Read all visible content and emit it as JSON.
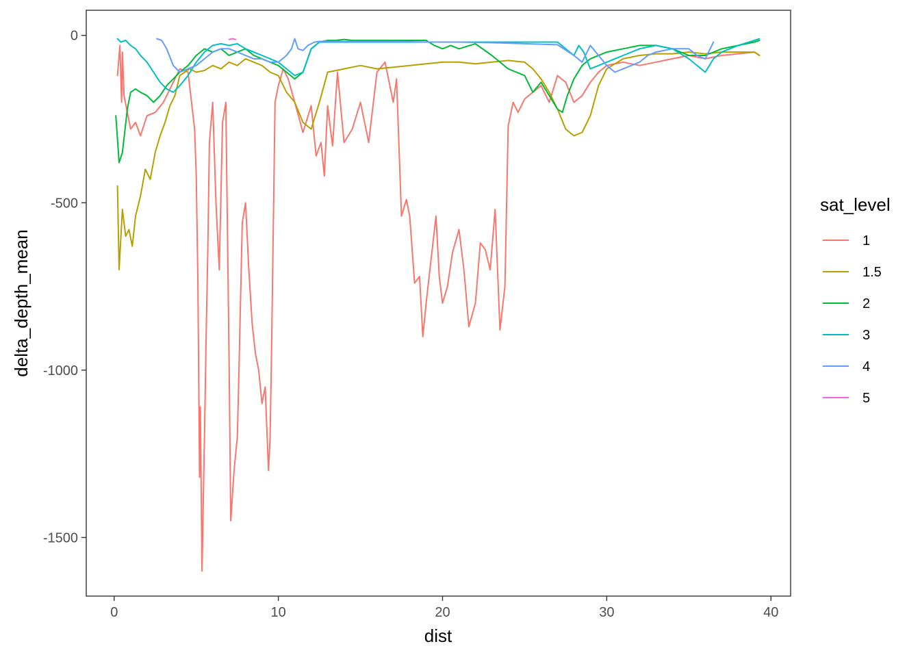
{
  "chart_data": {
    "type": "line",
    "title": "",
    "xlabel": "dist",
    "ylabel": "delta_depth_mean",
    "xlim": [
      -1.7,
      41.2
    ],
    "ylim": [
      -1675,
      75
    ],
    "x_ticks": [
      0,
      10,
      20,
      30,
      40
    ],
    "x_tick_labels": [
      "0",
      "10",
      "20",
      "30",
      "40"
    ],
    "y_ticks": [
      0,
      -500,
      -1000,
      -1500
    ],
    "y_tick_labels": [
      "0",
      "-500",
      "-1000",
      "-1500"
    ],
    "grid": false,
    "legend": {
      "title": "sat_level",
      "placement": "right"
    },
    "series": [
      {
        "name": "1",
        "color": "#F8766D",
        "x": [
          0.2,
          0.35,
          0.45,
          0.5,
          0.6,
          0.8,
          1.0,
          1.3,
          1.6,
          2.0,
          2.5,
          3.0,
          3.5,
          4.0,
          4.5,
          4.9,
          5.0,
          5.1,
          5.2,
          5.25,
          5.35,
          5.45,
          5.5,
          5.6,
          5.7,
          5.8,
          6.0,
          6.2,
          6.4,
          6.6,
          6.8,
          7.0,
          7.1,
          7.3,
          7.5,
          7.6,
          7.8,
          8.0,
          8.2,
          8.4,
          8.6,
          8.8,
          9.0,
          9.2,
          9.4,
          9.5,
          9.6,
          9.8,
          10.0,
          10.3,
          10.6,
          11.0,
          11.5,
          12.0,
          12.3,
          12.6,
          12.8,
          13.0,
          13.3,
          13.6,
          14.0,
          14.5,
          15.0,
          15.5,
          16.0,
          16.5,
          17.0,
          17.2,
          17.5,
          17.8,
          18.0,
          18.3,
          18.6,
          18.8,
          19.0,
          19.3,
          19.6,
          19.8,
          20.0,
          20.3,
          20.6,
          21.0,
          21.3,
          21.6,
          22.0,
          22.3,
          22.6,
          22.9,
          23.2,
          23.5,
          23.8,
          24.0,
          24.3,
          24.6,
          25.0,
          25.5,
          26.0,
          26.5,
          27.0,
          27.5,
          28.0,
          28.5,
          29.0,
          29.5,
          30.0,
          31.0,
          32.0,
          33.0,
          34.0,
          35.0,
          36.0,
          37.0,
          38.0,
          39.0,
          39.3
        ],
        "y": [
          -120,
          -30,
          -200,
          -50,
          -180,
          -230,
          -280,
          -260,
          -300,
          -240,
          -230,
          -200,
          -150,
          -100,
          -110,
          -280,
          -420,
          -740,
          -1320,
          -1110,
          -1600,
          -1330,
          -1200,
          -900,
          -650,
          -320,
          -200,
          -500,
          -700,
          -260,
          -200,
          -980,
          -1450,
          -1300,
          -1200,
          -1000,
          -560,
          -500,
          -700,
          -860,
          -950,
          -1000,
          -1100,
          -1050,
          -1300,
          -1200,
          -900,
          -200,
          -150,
          -100,
          -130,
          -200,
          -290,
          -210,
          -360,
          -320,
          -420,
          -210,
          -330,
          -110,
          -320,
          -280,
          -200,
          -320,
          -110,
          -80,
          -200,
          -130,
          -540,
          -490,
          -540,
          -740,
          -720,
          -900,
          -800,
          -670,
          -540,
          -720,
          -800,
          -750,
          -650,
          -580,
          -700,
          -870,
          -800,
          -620,
          -640,
          -700,
          -520,
          -880,
          -750,
          -270,
          -200,
          -230,
          -190,
          -170,
          -150,
          -200,
          -120,
          -140,
          -200,
          -180,
          -140,
          -110,
          -90,
          -80,
          -90,
          -80,
          -70,
          -60,
          -70,
          -60,
          -55,
          -50,
          -60
        ]
      },
      {
        "name": "1.5",
        "color": "#B79F00",
        "x": [
          0.2,
          0.3,
          0.5,
          0.7,
          0.9,
          1.1,
          1.3,
          1.6,
          1.9,
          2.2,
          2.5,
          2.8,
          3.1,
          3.4,
          3.7,
          4.0,
          4.3,
          4.6,
          5.0,
          5.5,
          6.0,
          6.5,
          7.0,
          7.5,
          8.0,
          8.5,
          9.0,
          9.5,
          10.0,
          10.5,
          11.0,
          11.5,
          12.0,
          12.5,
          13.0,
          14.0,
          15.0,
          16.0,
          17.0,
          18.0,
          19.0,
          20.0,
          21.0,
          22.0,
          23.0,
          24.0,
          25.0,
          25.5,
          26.0,
          26.5,
          27.0,
          27.5,
          28.0,
          28.5,
          29.0,
          29.5,
          30.0,
          31.0,
          32.0,
          33.0,
          34.0,
          35.0,
          36.0,
          37.0,
          38.0,
          39.0,
          39.3
        ],
        "y": [
          -450,
          -700,
          -520,
          -600,
          -580,
          -630,
          -540,
          -480,
          -400,
          -430,
          -350,
          -300,
          -260,
          -210,
          -180,
          -120,
          -110,
          -100,
          -110,
          -105,
          -90,
          -100,
          -80,
          -90,
          -70,
          -80,
          -90,
          -110,
          -120,
          -170,
          -200,
          -260,
          -280,
          -200,
          -110,
          -100,
          -90,
          -100,
          -95,
          -90,
          -85,
          -80,
          -80,
          -85,
          -80,
          -75,
          -80,
          -100,
          -130,
          -170,
          -220,
          -280,
          -300,
          -290,
          -240,
          -150,
          -100,
          -70,
          -60,
          -55,
          -55,
          -50,
          -55,
          -50,
          -50,
          -50,
          -60
        ]
      },
      {
        "name": "2",
        "color": "#00BA38",
        "x": [
          0.1,
          0.3,
          0.5,
          0.8,
          1.0,
          1.3,
          1.6,
          2.0,
          2.4,
          2.8,
          3.2,
          3.6,
          4.0,
          4.5,
          5.0,
          5.5,
          6.0,
          6.5,
          7.0,
          7.5,
          8.0,
          8.5,
          9.0,
          9.5,
          10.0,
          10.5,
          11.0,
          11.5,
          12.0,
          12.5,
          13.0,
          13.5,
          14.0,
          14.5,
          15.0,
          16.0,
          17.0,
          18.0,
          19.0,
          19.5,
          20.0,
          20.5,
          21.0,
          22.0,
          23.0,
          24.0,
          24.5,
          25.0,
          25.5,
          26.0,
          26.5,
          27.0,
          27.3,
          27.6,
          28.0,
          28.5,
          29.0,
          30.0,
          31.0,
          32.0,
          33.0,
          34.0,
          35.0,
          36.0,
          37.0,
          38.0,
          39.0,
          39.3
        ],
        "y": [
          -240,
          -380,
          -350,
          -220,
          -170,
          -160,
          -170,
          -180,
          -200,
          -180,
          -150,
          -130,
          -110,
          -90,
          -60,
          -40,
          -50,
          -40,
          -60,
          -50,
          -40,
          -60,
          -70,
          -80,
          -90,
          -110,
          -130,
          -110,
          -40,
          -20,
          -15,
          -15,
          -12,
          -15,
          -15,
          -15,
          -15,
          -15,
          -15,
          -30,
          -40,
          -30,
          -40,
          -25,
          -60,
          -100,
          -110,
          -120,
          -170,
          -140,
          -180,
          -220,
          -230,
          -180,
          -130,
          -90,
          -70,
          -50,
          -40,
          -30,
          -30,
          -40,
          -60,
          -60,
          -40,
          -30,
          -20,
          -15
        ]
      },
      {
        "name": "3",
        "color": "#00BFC4",
        "x": [
          0.2,
          0.4,
          0.7,
          1.0,
          1.3,
          1.6,
          2.0,
          2.4,
          2.8,
          3.2,
          3.6,
          4.0,
          4.5,
          5.0,
          5.5,
          6.0,
          6.5,
          7.0,
          7.5,
          8.0,
          8.5,
          9.0,
          9.5,
          10.0,
          10.5,
          11.0,
          11.5,
          12.0,
          12.5,
          13.0,
          14.0,
          15.0,
          16.0,
          17.0,
          18.0,
          19.0,
          20.0,
          21.0,
          22.0,
          23.0,
          24.0,
          25.0,
          26.0,
          27.0,
          27.5,
          28.0,
          28.3,
          28.6,
          29.0,
          29.5,
          30.0,
          30.5,
          31.0,
          32.0,
          33.0,
          34.0,
          35.0,
          35.5,
          36.0,
          36.5,
          37.0,
          38.0,
          39.0,
          39.3
        ],
        "y": [
          -10,
          -20,
          -15,
          -30,
          -40,
          -60,
          -80,
          -110,
          -140,
          -160,
          -170,
          -150,
          -120,
          -80,
          -50,
          -30,
          -25,
          -30,
          -25,
          -40,
          -50,
          -60,
          -70,
          -80,
          -100,
          -120,
          -110,
          -40,
          -20,
          -20,
          -20,
          -20,
          -20,
          -20,
          -20,
          -20,
          -20,
          -20,
          -20,
          -20,
          -20,
          -20,
          -20,
          -20,
          -40,
          -60,
          -30,
          -50,
          -100,
          -90,
          -80,
          -70,
          -60,
          -40,
          -30,
          -40,
          -70,
          -90,
          -110,
          -70,
          -50,
          -30,
          -15,
          -10
        ]
      },
      {
        "name": "4",
        "color": "#619CFF",
        "x": [
          2.6,
          2.9,
          3.2,
          3.6,
          4.0,
          4.5,
          5.0,
          5.5,
          6.0,
          6.5,
          7.0,
          7.5,
          8.0,
          8.5,
          9.0,
          9.5,
          10.0,
          10.5,
          10.8,
          11.0,
          11.2,
          11.5,
          11.8,
          12.2,
          12.5,
          13.0,
          15.0,
          17.0,
          19.0,
          21.0,
          23.0,
          25.0,
          27.0,
          28.0,
          28.5,
          29.0,
          29.5,
          30.0,
          30.5,
          31.0,
          31.5,
          32.0,
          32.5,
          33.0,
          34.0,
          35.0,
          35.5,
          36.0,
          36.5
        ],
        "y": [
          -10,
          -15,
          -40,
          -90,
          -110,
          -100,
          -90,
          -70,
          -50,
          -40,
          -40,
          -50,
          -60,
          -70,
          -70,
          -80,
          -80,
          -60,
          -40,
          -10,
          -40,
          -45,
          -30,
          -20,
          -18,
          -18,
          -18,
          -18,
          -20,
          -20,
          -22,
          -25,
          -28,
          -60,
          -80,
          -30,
          -60,
          -90,
          -110,
          -100,
          -90,
          -80,
          -60,
          -50,
          -40,
          -40,
          -60,
          -70,
          -20
        ]
      },
      {
        "name": "5",
        "color": "#F564E3",
        "x": [
          7.0,
          7.2,
          7.4
        ],
        "y": [
          -12,
          -10,
          -12
        ]
      }
    ]
  }
}
